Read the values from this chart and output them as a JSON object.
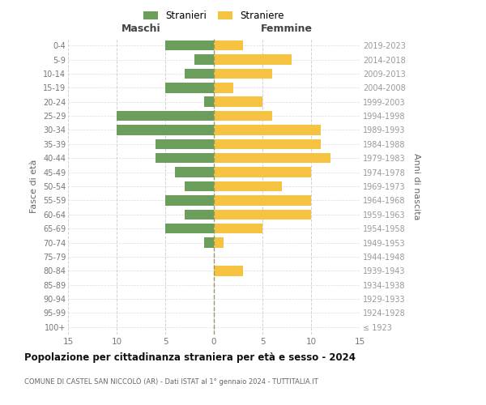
{
  "age_groups": [
    "100+",
    "95-99",
    "90-94",
    "85-89",
    "80-84",
    "75-79",
    "70-74",
    "65-69",
    "60-64",
    "55-59",
    "50-54",
    "45-49",
    "40-44",
    "35-39",
    "30-34",
    "25-29",
    "20-24",
    "15-19",
    "10-14",
    "5-9",
    "0-4"
  ],
  "birth_years": [
    "≤ 1923",
    "1924-1928",
    "1929-1933",
    "1934-1938",
    "1939-1943",
    "1944-1948",
    "1949-1953",
    "1954-1958",
    "1959-1963",
    "1964-1968",
    "1969-1973",
    "1974-1978",
    "1979-1983",
    "1984-1988",
    "1989-1993",
    "1994-1998",
    "1999-2003",
    "2004-2008",
    "2009-2013",
    "2014-2018",
    "2019-2023"
  ],
  "maschi": [
    0,
    0,
    0,
    0,
    0,
    0,
    1,
    5,
    3,
    5,
    3,
    4,
    6,
    6,
    10,
    10,
    1,
    5,
    3,
    2,
    5
  ],
  "femmine": [
    0,
    0,
    0,
    0,
    3,
    0,
    1,
    5,
    10,
    10,
    7,
    10,
    12,
    11,
    11,
    6,
    5,
    2,
    6,
    8,
    3
  ],
  "maschi_color": "#6a9e5a",
  "femmine_color": "#f5c242",
  "bg_color": "#ffffff",
  "grid_color": "#cccccc",
  "title": "Popolazione per cittadinanza straniera per età e sesso - 2024",
  "subtitle": "COMUNE DI CASTEL SAN NICCOLÒ (AR) - Dati ISTAT al 1° gennaio 2024 - TUTTITALIA.IT",
  "ylabel_left": "Fasce di età",
  "ylabel_right": "Anni di nascita",
  "xlabel_left": "Maschi",
  "xlabel_femmine": "Femmine",
  "legend_stranieri": "Stranieri",
  "legend_straniere": "Straniere",
  "xlim": 15
}
